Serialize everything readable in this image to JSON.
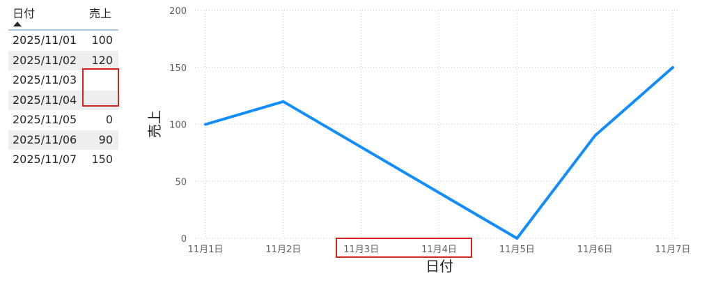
{
  "table": {
    "headers": {
      "date": "日付",
      "sales": "売上"
    },
    "rows": [
      {
        "date": "2025/11/01",
        "sales": "100"
      },
      {
        "date": "2025/11/02",
        "sales": "120"
      },
      {
        "date": "2025/11/03",
        "sales": ""
      },
      {
        "date": "2025/11/04",
        "sales": ""
      },
      {
        "date": "2025/11/05",
        "sales": "0"
      },
      {
        "date": "2025/11/06",
        "sales": "90"
      },
      {
        "date": "2025/11/07",
        "sales": "150"
      }
    ]
  },
  "chart_data": {
    "type": "line",
    "xlabel": "日付",
    "ylabel": "売上",
    "categories": [
      "11月1日",
      "11月2日",
      "11月3日",
      "11月4日",
      "11月5日",
      "11月6日",
      "11月7日"
    ],
    "series": [
      {
        "values": [
          100,
          120,
          null,
          null,
          0,
          90,
          150
        ]
      }
    ],
    "ylim": [
      0,
      200
    ],
    "yticks": [
      "0",
      "50",
      "100",
      "150",
      "200"
    ],
    "grid": true,
    "line_color": "#118dff",
    "highlight_color": "#d8221c"
  }
}
